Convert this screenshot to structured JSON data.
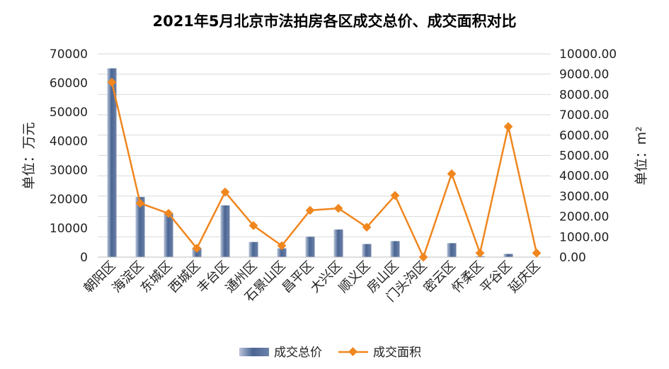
{
  "chart_data": {
    "type": "bar",
    "title": "2021年5月北京市法拍房各区成交总价、成交面积对比",
    "categories": [
      "朝阳区",
      "海淀区",
      "东城区",
      "西城区",
      "丰台区",
      "通州区",
      "石景山区",
      "昌平区",
      "大兴区",
      "顺义区",
      "房山区",
      "门头沟区",
      "密云区",
      "怀柔区",
      "平谷区",
      "延庆区"
    ],
    "series": [
      {
        "name": "成交总价",
        "axis": "left",
        "type": "bar",
        "color": "#4a6593",
        "values": [
          65000,
          20700,
          15200,
          3200,
          17800,
          5200,
          3000,
          7000,
          9500,
          4500,
          5500,
          0,
          4800,
          300,
          1100,
          0
        ]
      },
      {
        "name": "成交面积",
        "axis": "right",
        "type": "line",
        "color": "#f0861e",
        "values": [
          8600,
          2650,
          2150,
          430,
          3200,
          1550,
          560,
          2300,
          2400,
          1470,
          3030,
          0,
          4100,
          200,
          6420,
          200
        ]
      }
    ],
    "ylabel": "单位：万元",
    "y2label": "单位：m²",
    "ylim": [
      0,
      70000
    ],
    "y2lim": [
      0,
      10000
    ],
    "yticks": [
      "0",
      "10000",
      "20000",
      "30000",
      "40000",
      "50000",
      "60000",
      "70000"
    ],
    "y2ticks": [
      "0.00",
      "1000.00",
      "2000.00",
      "3000.00",
      "4000.00",
      "5000.00",
      "6000.00",
      "7000.00",
      "8000.00",
      "9000.00",
      "10000.00"
    ],
    "grid": true,
    "legend_position": "bottom"
  }
}
